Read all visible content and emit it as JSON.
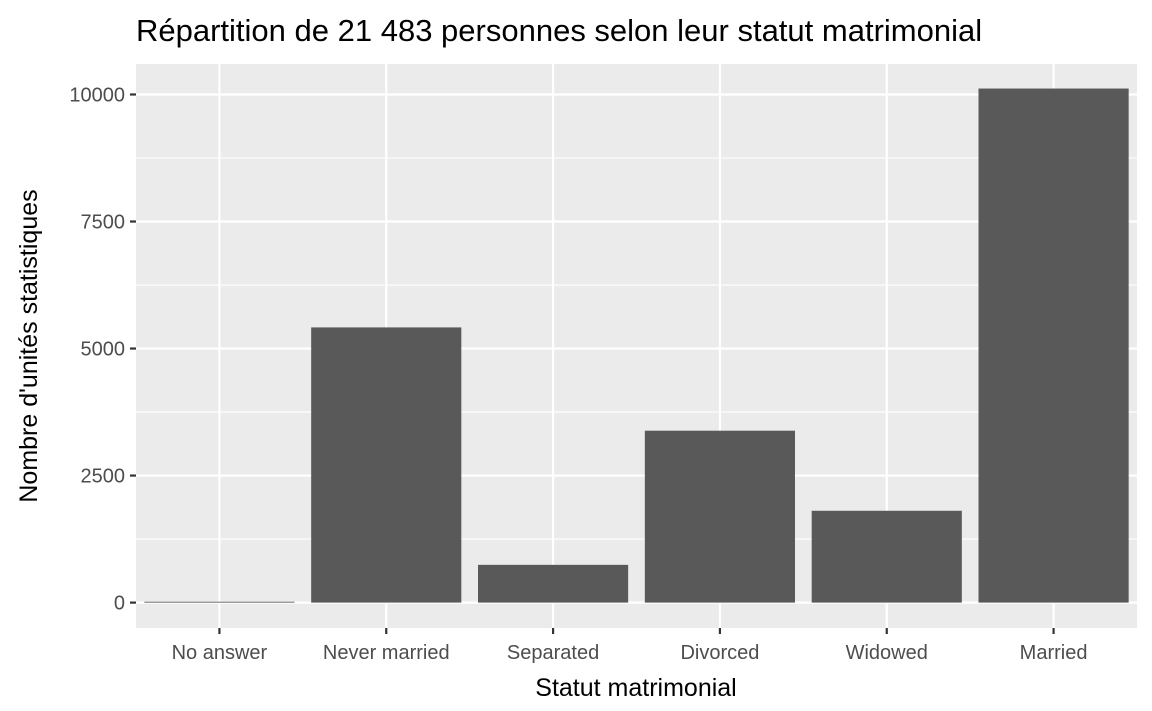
{
  "chart_data": {
    "type": "bar",
    "title": "Répartition de 21 483 personnes selon leur statut matrimonial",
    "xlabel": "Statut matrimonial",
    "ylabel": "Nombre d'unités statistiques",
    "categories": [
      "No answer",
      "Never married",
      "Separated",
      "Divorced",
      "Widowed",
      "Married"
    ],
    "values": [
      17,
      5416,
      743,
      3383,
      1807,
      10117
    ],
    "ylim": [
      -500,
      10600
    ],
    "yticks": [
      0,
      2500,
      5000,
      7500,
      10000
    ],
    "ytick_labels": [
      "0",
      "2500",
      "5000",
      "7500",
      "10000"
    ],
    "grid": true,
    "legend": "none",
    "colors": {
      "panel_background": "#ebebeb",
      "grid_major": "#ffffff",
      "bar_fill": "#595959",
      "tick_mark": "#333333",
      "tick_label": "#4d4d4d"
    }
  }
}
